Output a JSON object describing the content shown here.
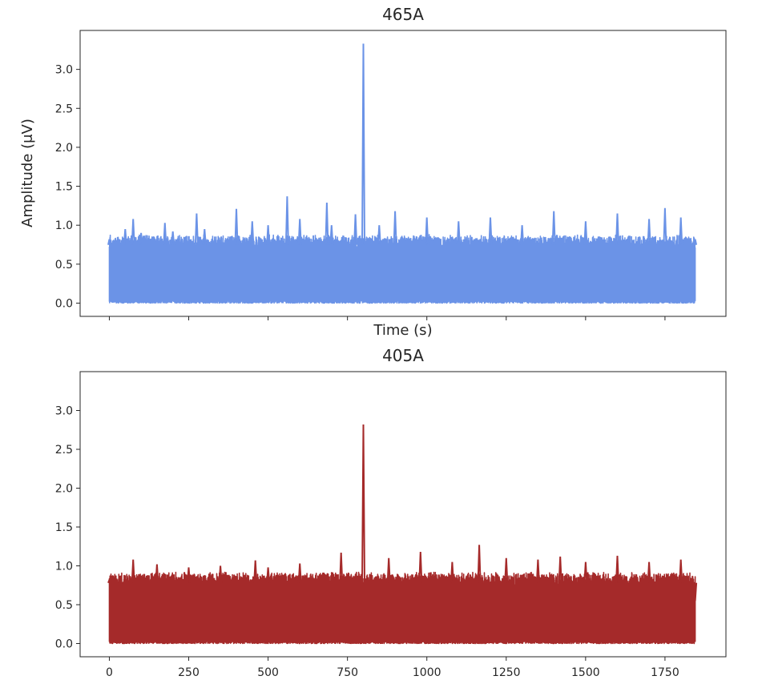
{
  "figure": {
    "subplots": [
      {
        "title": "465A",
        "xlabel": "Time (s)",
        "ylabel": "Amplitude (μV)",
        "color": "#6b93e7"
      },
      {
        "title": "405A",
        "xlabel": "",
        "ylabel": "",
        "color": "#a52a2a"
      }
    ]
  },
  "chart_data": [
    {
      "type": "line",
      "title": "465A",
      "xlabel": "Time (s)",
      "ylabel": "Amplitude (μV)",
      "xlim": [
        -92,
        1942
      ],
      "ylim": [
        -0.17,
        3.5
      ],
      "xticks": [
        0,
        250,
        500,
        750,
        1000,
        1250,
        1500,
        1750
      ],
      "xtick_labels_visible": false,
      "yticks": [
        0.0,
        0.5,
        1.0,
        1.5,
        2.0,
        2.5,
        3.0
      ],
      "ytick_labels": [
        "0.0",
        "0.5",
        "1.0",
        "1.5",
        "2.0",
        "2.5",
        "3.0"
      ],
      "grid": false,
      "color": "#6b93e7",
      "series": [
        {
          "description_free": true,
          "baseline_min": 0.0,
          "typical_envelope": 0.88,
          "x": [
            0,
            50,
            75,
            100,
            175,
            200,
            275,
            300,
            400,
            450,
            500,
            560,
            600,
            685,
            700,
            775,
            800,
            850,
            900,
            1000,
            1100,
            1200,
            1300,
            1400,
            1500,
            1600,
            1700,
            1750,
            1800,
            1845
          ],
          "y": [
            0.82,
            0.95,
            1.08,
            0.9,
            1.03,
            0.92,
            1.15,
            0.95,
            1.21,
            1.05,
            1.0,
            1.37,
            1.08,
            1.29,
            1.0,
            1.14,
            3.33,
            1.0,
            1.18,
            1.1,
            1.05,
            1.1,
            1.0,
            1.18,
            1.05,
            1.15,
            1.08,
            1.22,
            1.1,
            0.82
          ]
        }
      ]
    },
    {
      "type": "line",
      "title": "405A",
      "xlabel": "",
      "ylabel": "",
      "xlim": [
        -92,
        1942
      ],
      "ylim": [
        -0.17,
        3.5
      ],
      "xticks": [
        0,
        250,
        500,
        750,
        1000,
        1250,
        1500,
        1750
      ],
      "xtick_labels": [
        "0",
        "250",
        "500",
        "750",
        "1000",
        "1250",
        "1500",
        "1750"
      ],
      "yticks": [
        0.0,
        0.5,
        1.0,
        1.5,
        2.0,
        2.5,
        3.0
      ],
      "ytick_labels": [
        "0.0",
        "0.5",
        "1.0",
        "1.5",
        "2.0",
        "2.5",
        "3.0"
      ],
      "grid": false,
      "color": "#a52a2a",
      "series": [
        {
          "baseline_min": 0.0,
          "typical_envelope": 0.92,
          "x": [
            0,
            75,
            150,
            250,
            350,
            460,
            500,
            600,
            730,
            800,
            880,
            980,
            1080,
            1165,
            1250,
            1350,
            1420,
            1500,
            1600,
            1700,
            1800,
            1845
          ],
          "y": [
            0.82,
            1.08,
            1.02,
            0.98,
            1.0,
            1.07,
            0.98,
            1.03,
            1.17,
            2.82,
            1.1,
            1.18,
            1.05,
            1.27,
            1.1,
            1.08,
            1.12,
            1.05,
            1.13,
            1.05,
            1.08,
            0.55
          ]
        }
      ]
    }
  ]
}
